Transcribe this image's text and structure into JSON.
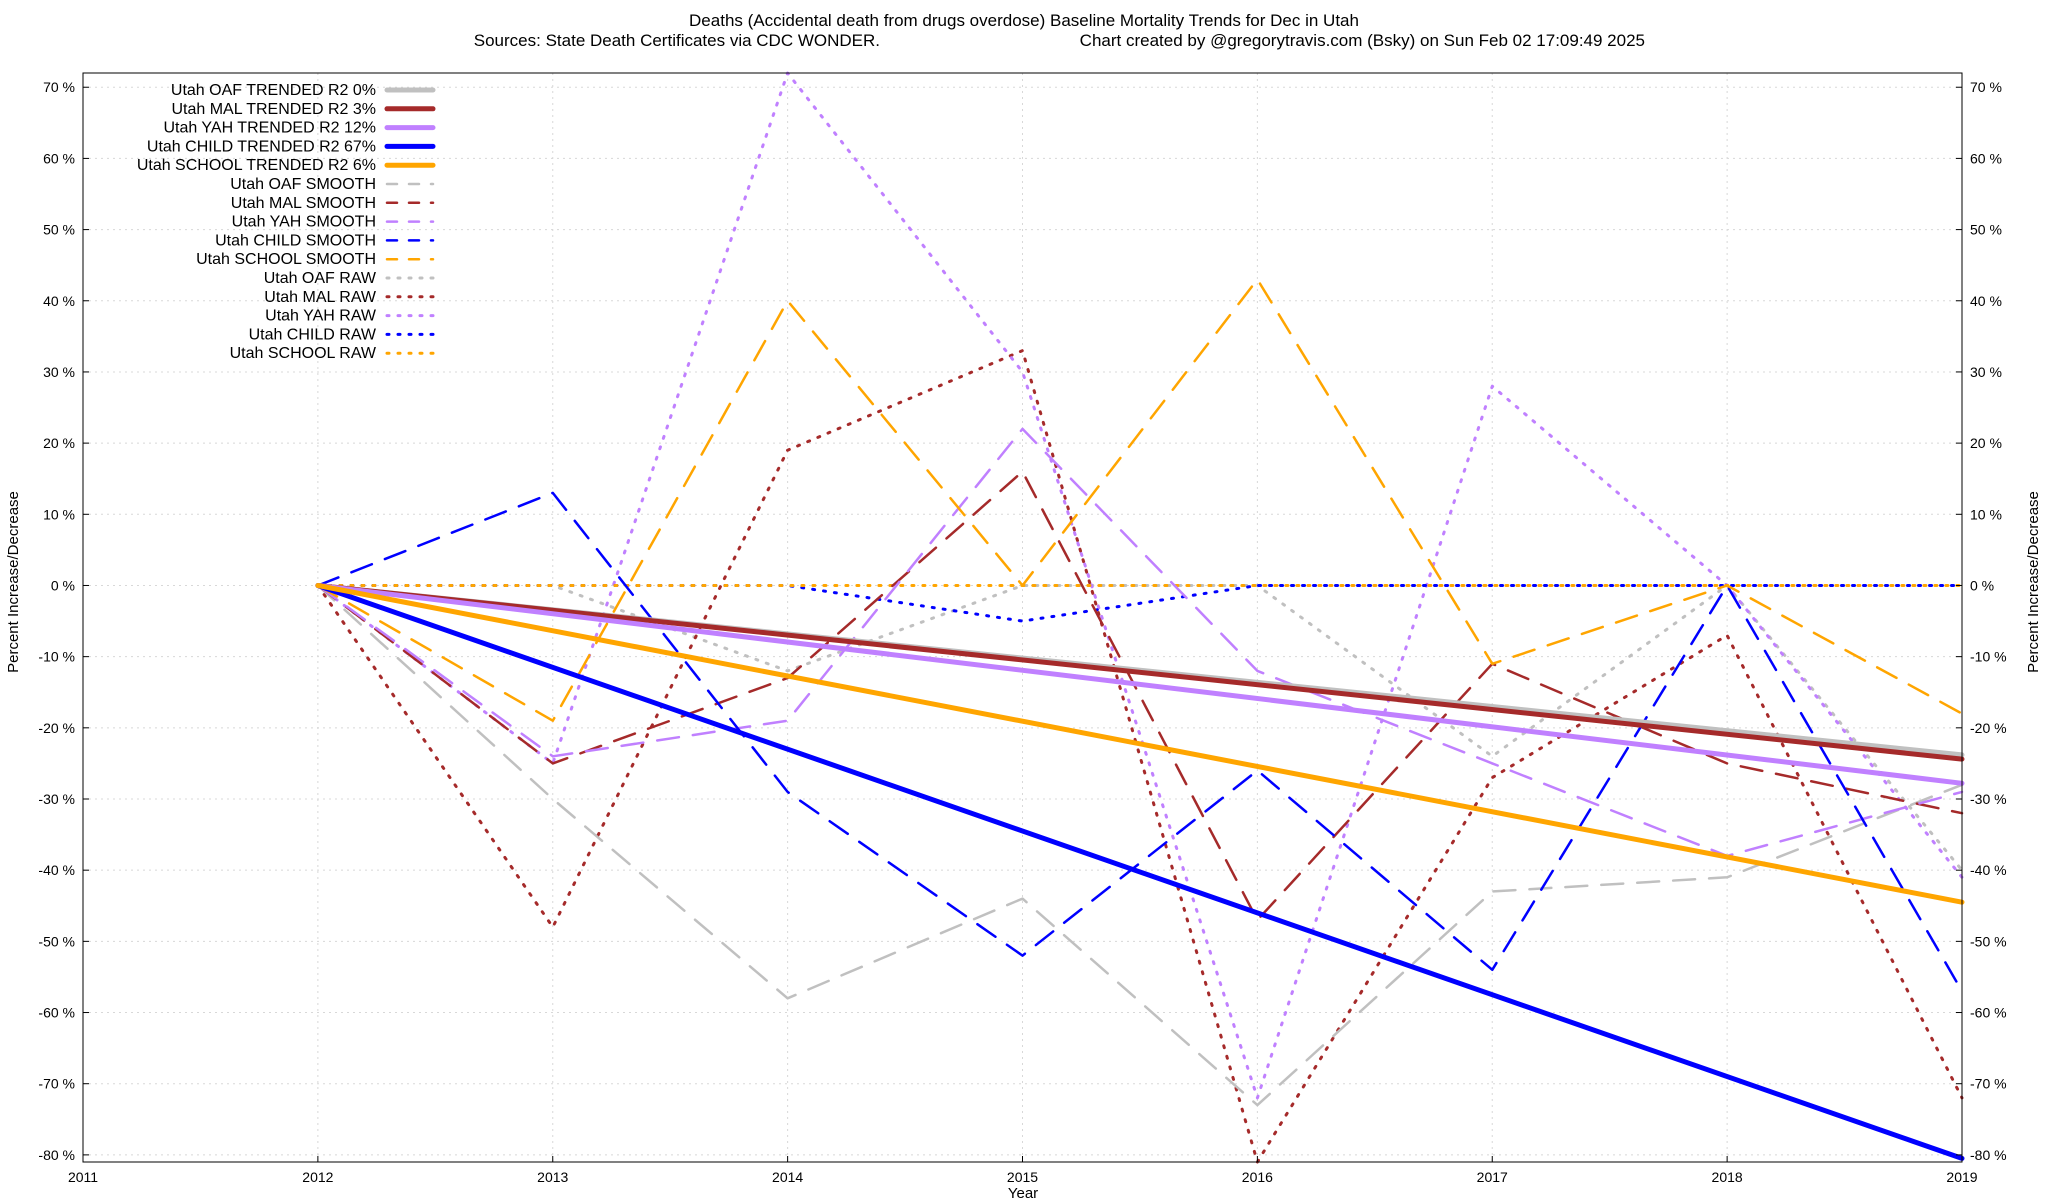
{
  "chart_data": {
    "type": "line",
    "title": "Deaths (Accidental death from drugs overdose)  Baseline Mortality Trends for Dec in Utah",
    "subtitle_left": "Sources: State Death Certificates via CDC WONDER.",
    "subtitle_right": "Chart created by @gregorytravis.com (Bsky) on Sun Feb 02 17:09:49 2025",
    "xlabel": "Year",
    "ylabel_left": "Percent Increase/Decrease",
    "ylabel_right": "Percent Increase/Decrease",
    "xlim": [
      2011,
      2019
    ],
    "ylim": [
      -81,
      72
    ],
    "x_ticks": [
      2011,
      2012,
      2013,
      2014,
      2015,
      2016,
      2017,
      2018,
      2019
    ],
    "x_tick_labels": [
      "2011",
      "2012",
      "2013",
      "2014",
      "2015",
      "2016",
      "2017",
      "2018",
      "2019"
    ],
    "y_ticks": [
      70,
      60,
      50,
      40,
      30,
      20,
      10,
      0,
      -10,
      -20,
      -30,
      -40,
      -50,
      -60,
      -70,
      -80
    ],
    "y_tick_labels": [
      "70 %",
      "60 %",
      "50 %",
      "40 %",
      "30 %",
      "20 %",
      "10 %",
      "0 %",
      "-10 %",
      "-20 %",
      "-30 %",
      "-40 %",
      "-50 %",
      "-60 %",
      "-70 %",
      "-80 %"
    ],
    "grid": true,
    "legend_position": "top-left",
    "series": [
      {
        "name": "Utah OAF TRENDED R2   0%",
        "kind": "trend",
        "color": "#c0c0c0",
        "x": [
          2012,
          2019
        ],
        "y": [
          0,
          -23.8
        ]
      },
      {
        "name": "Utah MAL TRENDED R2   3%",
        "kind": "trend",
        "color": "#a52a2a",
        "x": [
          2012,
          2019
        ],
        "y": [
          0,
          -24.4
        ]
      },
      {
        "name": "Utah YAH TRENDED R2  12%",
        "kind": "trend",
        "color": "#c080ff",
        "x": [
          2012,
          2019
        ],
        "y": [
          0,
          -27.8
        ]
      },
      {
        "name": "Utah CHILD TRENDED R2  67%",
        "kind": "trend",
        "color": "#0000ff",
        "x": [
          2012,
          2019
        ],
        "y": [
          0,
          -80.5
        ]
      },
      {
        "name": "Utah SCHOOL TRENDED R2   6%",
        "kind": "trend",
        "color": "#ffa500",
        "x": [
          2012,
          2019
        ],
        "y": [
          0,
          -44.5
        ]
      },
      {
        "name": "Utah OAF SMOOTH",
        "kind": "smooth",
        "color": "#c0c0c0",
        "x": [
          2012,
          2013,
          2014,
          2015,
          2016,
          2017,
          2018,
          2019
        ],
        "y": [
          0,
          -30,
          -58,
          -44,
          -73,
          -43,
          -41,
          -28
        ]
      },
      {
        "name": "Utah MAL SMOOTH",
        "kind": "smooth",
        "color": "#a52a2a",
        "x": [
          2012,
          2013,
          2014,
          2015,
          2016,
          2017,
          2018,
          2019
        ],
        "y": [
          0,
          -25,
          -13,
          16,
          -47,
          -11,
          -25,
          -32
        ]
      },
      {
        "name": "Utah YAH SMOOTH",
        "kind": "smooth",
        "color": "#c080ff",
        "x": [
          2012,
          2013,
          2014,
          2015,
          2016,
          2017,
          2018,
          2019
        ],
        "y": [
          0,
          -24,
          -19,
          22,
          -12,
          -25,
          -38,
          -29
        ]
      },
      {
        "name": "Utah CHILD SMOOTH",
        "kind": "smooth",
        "color": "#0000ff",
        "x": [
          2012,
          2013,
          2014,
          2015,
          2016,
          2017,
          2018,
          2019
        ],
        "y": [
          0,
          13,
          -29,
          -52,
          -26,
          -54,
          0,
          -57
        ]
      },
      {
        "name": "Utah SCHOOL SMOOTH",
        "kind": "smooth",
        "color": "#ffa500",
        "x": [
          2012,
          2013,
          2014,
          2015,
          2016,
          2017,
          2018,
          2019
        ],
        "y": [
          0,
          -19,
          40,
          0,
          43,
          -11,
          0,
          -18
        ]
      },
      {
        "name": "Utah OAF RAW",
        "kind": "raw",
        "color": "#c0c0c0",
        "x": [
          2012,
          2013,
          2014,
          2015,
          2016,
          2017,
          2018,
          2019
        ],
        "y": [
          0,
          0,
          -12,
          0,
          0,
          -24,
          0,
          -40
        ]
      },
      {
        "name": "Utah MAL RAW",
        "kind": "raw",
        "color": "#a52a2a",
        "x": [
          2012,
          2013,
          2014,
          2015,
          2016,
          2017,
          2018,
          2019
        ],
        "y": [
          0,
          -48,
          19,
          33,
          -81,
          -27,
          -7,
          -72
        ]
      },
      {
        "name": "Utah YAH RAW",
        "kind": "raw",
        "color": "#c080ff",
        "x": [
          2012,
          2013,
          2014,
          2015,
          2016,
          2017,
          2018,
          2019
        ],
        "y": [
          0,
          -25,
          72,
          30,
          -72,
          28,
          0,
          -41
        ]
      },
      {
        "name": "Utah CHILD RAW",
        "kind": "raw",
        "color": "#0000ff",
        "x": [
          2012,
          2013,
          2014,
          2015,
          2016,
          2017,
          2018,
          2019
        ],
        "y": [
          0,
          0,
          0,
          -5,
          0,
          0,
          0,
          0
        ]
      },
      {
        "name": "Utah SCHOOL RAW",
        "kind": "raw",
        "color": "#ffa500",
        "x": [
          2012,
          2013,
          2014,
          2015,
          2016,
          2017,
          2018,
          2019
        ],
        "y": [
          0,
          0,
          0,
          0,
          0,
          0,
          0,
          0
        ]
      }
    ]
  }
}
